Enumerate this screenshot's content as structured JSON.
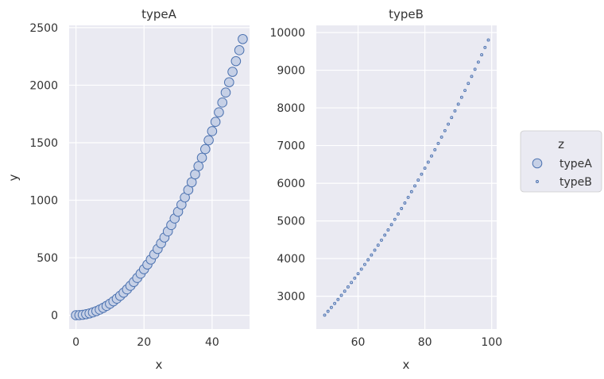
{
  "chart_data": {
    "type": "scatter",
    "legend": {
      "title": "z",
      "placement": "right",
      "entries": [
        "typeA",
        "typeB"
      ]
    },
    "colors": {
      "panel_bg": "#eaeaf2",
      "grid": "#ffffff",
      "marker_fill": "#c6d0e6",
      "marker_edge": "#4c72b0",
      "text": "#333333"
    },
    "panels": [
      {
        "title": "typeA",
        "xlabel": "x",
        "ylabel": "y",
        "xlim": [
          -2,
          51
        ],
        "ylim": [
          -120,
          2520
        ],
        "xticks": [
          0,
          20,
          40
        ],
        "yticks": [
          0,
          500,
          1000,
          1500,
          2000,
          2500
        ],
        "series": "typeA",
        "x": [
          0,
          1,
          2,
          3,
          4,
          5,
          6,
          7,
          8,
          9,
          10,
          11,
          12,
          13,
          14,
          15,
          16,
          17,
          18,
          19,
          20,
          21,
          22,
          23,
          24,
          25,
          26,
          27,
          28,
          29,
          30,
          31,
          32,
          33,
          34,
          35,
          36,
          37,
          38,
          39,
          40,
          41,
          42,
          43,
          44,
          45,
          46,
          47,
          48,
          49
        ],
        "y": [
          0,
          1,
          4,
          9,
          16,
          25,
          36,
          49,
          64,
          81,
          100,
          121,
          144,
          169,
          196,
          225,
          256,
          289,
          324,
          361,
          400,
          441,
          484,
          529,
          576,
          625,
          676,
          729,
          784,
          841,
          900,
          961,
          1024,
          1089,
          1156,
          1225,
          1296,
          1369,
          1444,
          1521,
          1600,
          1681,
          1764,
          1849,
          1936,
          2025,
          2116,
          2209,
          2304,
          2401
        ]
      },
      {
        "title": "typeB",
        "xlabel": "x",
        "ylabel": "",
        "xlim": [
          47.5,
          101.5
        ],
        "ylim": [
          2130,
          10190
        ],
        "xticks": [
          60,
          80,
          100
        ],
        "yticks": [
          3000,
          4000,
          5000,
          6000,
          7000,
          8000,
          9000,
          10000
        ],
        "series": "typeB",
        "x": [
          50,
          51,
          52,
          53,
          54,
          55,
          56,
          57,
          58,
          59,
          60,
          61,
          62,
          63,
          64,
          65,
          66,
          67,
          68,
          69,
          70,
          71,
          72,
          73,
          74,
          75,
          76,
          77,
          78,
          79,
          80,
          81,
          82,
          83,
          84,
          85,
          86,
          87,
          88,
          89,
          90,
          91,
          92,
          93,
          94,
          95,
          96,
          97,
          98,
          99
        ],
        "y": [
          2500,
          2601,
          2704,
          2809,
          2916,
          3025,
          3136,
          3249,
          3364,
          3481,
          3600,
          3721,
          3844,
          3969,
          4096,
          4225,
          4356,
          4489,
          4624,
          4761,
          4900,
          5041,
          5184,
          5329,
          5476,
          5625,
          5776,
          5929,
          6084,
          6241,
          6400,
          6561,
          6724,
          6889,
          7056,
          7225,
          7396,
          7569,
          7744,
          7921,
          8100,
          8281,
          8464,
          8649,
          8836,
          9025,
          9216,
          9409,
          9604,
          9801
        ]
      }
    ]
  }
}
